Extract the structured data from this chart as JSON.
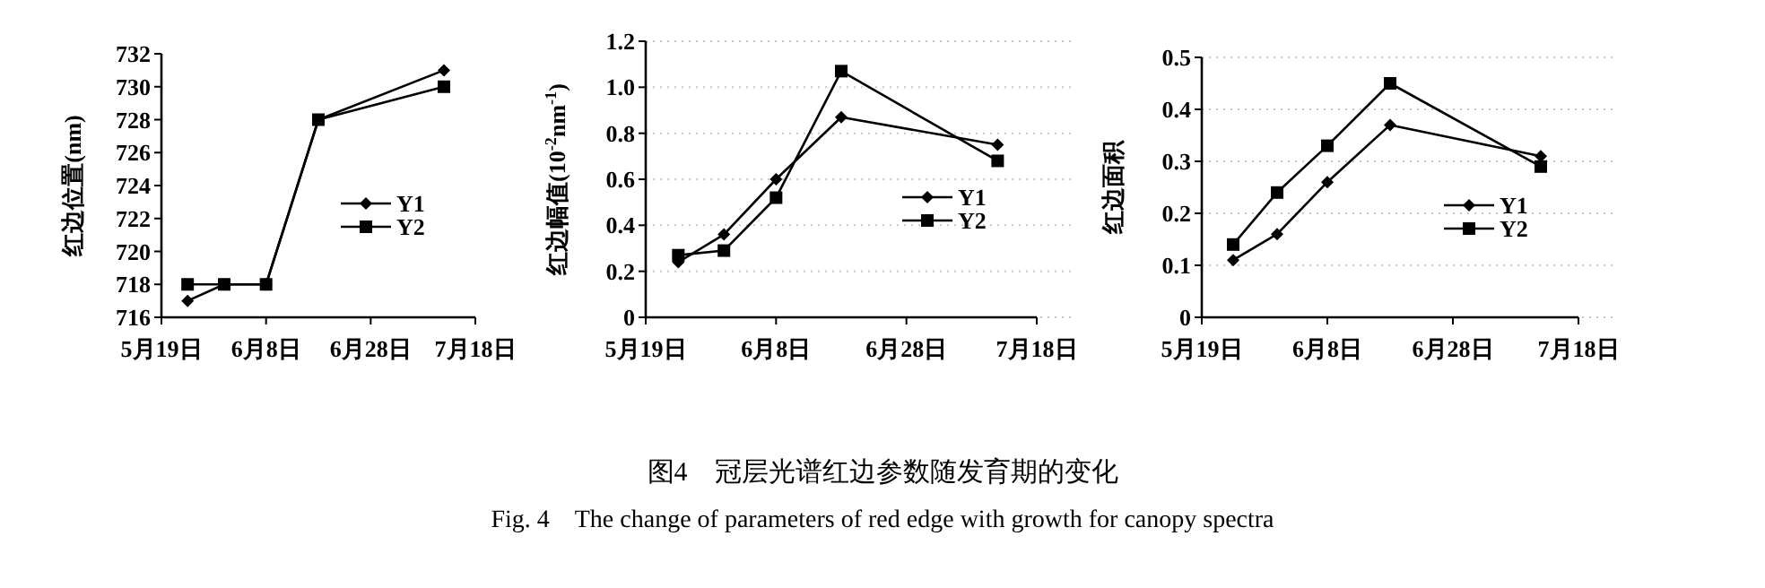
{
  "chart_data": [
    {
      "type": "line",
      "ylabel": "红边位置(nm)",
      "x": [
        "--05-24",
        "--05-31",
        "--06-08",
        "--06-18",
        "--07-12"
      ],
      "xlim": [
        "--05-19",
        "--07-18"
      ],
      "xticks": [
        {
          "value": "--05-19",
          "label": "5月19日"
        },
        {
          "value": "--06-08",
          "label": "6月8日"
        },
        {
          "value": "--06-28",
          "label": "6月28日"
        },
        {
          "value": "--07-18",
          "label": "7月18日"
        }
      ],
      "ylim": [
        716,
        732
      ],
      "yticks": [
        716,
        718,
        720,
        722,
        724,
        726,
        728,
        730,
        732
      ],
      "grid": false,
      "legend": "right",
      "series": [
        {
          "name": "Y1",
          "color": "#000000",
          "marker": "diamond",
          "values": [
            717,
            718,
            718,
            728,
            731
          ]
        },
        {
          "name": "Y2",
          "color": "#000000",
          "marker": "square",
          "values": [
            718,
            718,
            718,
            728,
            730
          ]
        }
      ],
      "annotations": [
        "图4　冠层光谱红边参数随发育期的变化",
        "Fig. 4　The change of parameters of red edge with growth for canopy spectra"
      ]
    },
    {
      "type": "line",
      "ylabel": "红边幅值(10$^{-2}$nm$^{-1}$)",
      "x": [
        "--05-24",
        "--05-31",
        "--06-08",
        "--06-18",
        "--07-12"
      ],
      "xlim": [
        "--05-19",
        "--07-18"
      ],
      "xticks": [
        {
          "value": "--05-19",
          "label": "5月19日"
        },
        {
          "value": "--06-08",
          "label": "6月8日"
        },
        {
          "value": "--06-28",
          "label": "6月28日"
        },
        {
          "value": "--07-18",
          "label": "7月18日"
        }
      ],
      "ylim": [
        0,
        1.2
      ],
      "yticks": [
        0,
        0.2,
        0.4,
        0.6,
        0.8,
        {
          "value": 1,
          "label": "1.0"
        },
        1.2
      ],
      "grid": "y",
      "legend": "right",
      "series": [
        {
          "name": "Y1",
          "color": "#000000",
          "marker": "diamond",
          "values": [
            0.24,
            0.36,
            0.6,
            0.87,
            0.75
          ]
        },
        {
          "name": "Y2",
          "color": "#000000",
          "marker": "square",
          "values": [
            0.27,
            0.29,
            0.52,
            1.07,
            0.68
          ]
        }
      ]
    },
    {
      "type": "line",
      "ylabel": "红边面积",
      "x": [
        "--05-24",
        "--05-31",
        "--06-08",
        "--06-18",
        "--07-12"
      ],
      "xlim": [
        "--05-19",
        "--07-18"
      ],
      "xticks": [
        {
          "value": "--05-19",
          "label": "5月19日"
        },
        {
          "value": "--06-08",
          "label": "6月8日"
        },
        {
          "value": "--06-28",
          "label": "6月28日"
        },
        {
          "value": "--07-18",
          "label": "7月18日"
        }
      ],
      "ylim": [
        0,
        0.5
      ],
      "yticks": [
        0,
        0.1,
        0.2,
        0.3,
        0.4,
        0.5
      ],
      "grid": "y",
      "legend": "right",
      "series": [
        {
          "name": "Y1",
          "color": "#000000",
          "marker": "diamond",
          "values": [
            0.11,
            0.16,
            0.26,
            0.37,
            0.31
          ]
        },
        {
          "name": "Y2",
          "color": "#000000",
          "marker": "square",
          "values": [
            0.14,
            0.24,
            0.33,
            0.45,
            0.29
          ]
        }
      ]
    }
  ]
}
